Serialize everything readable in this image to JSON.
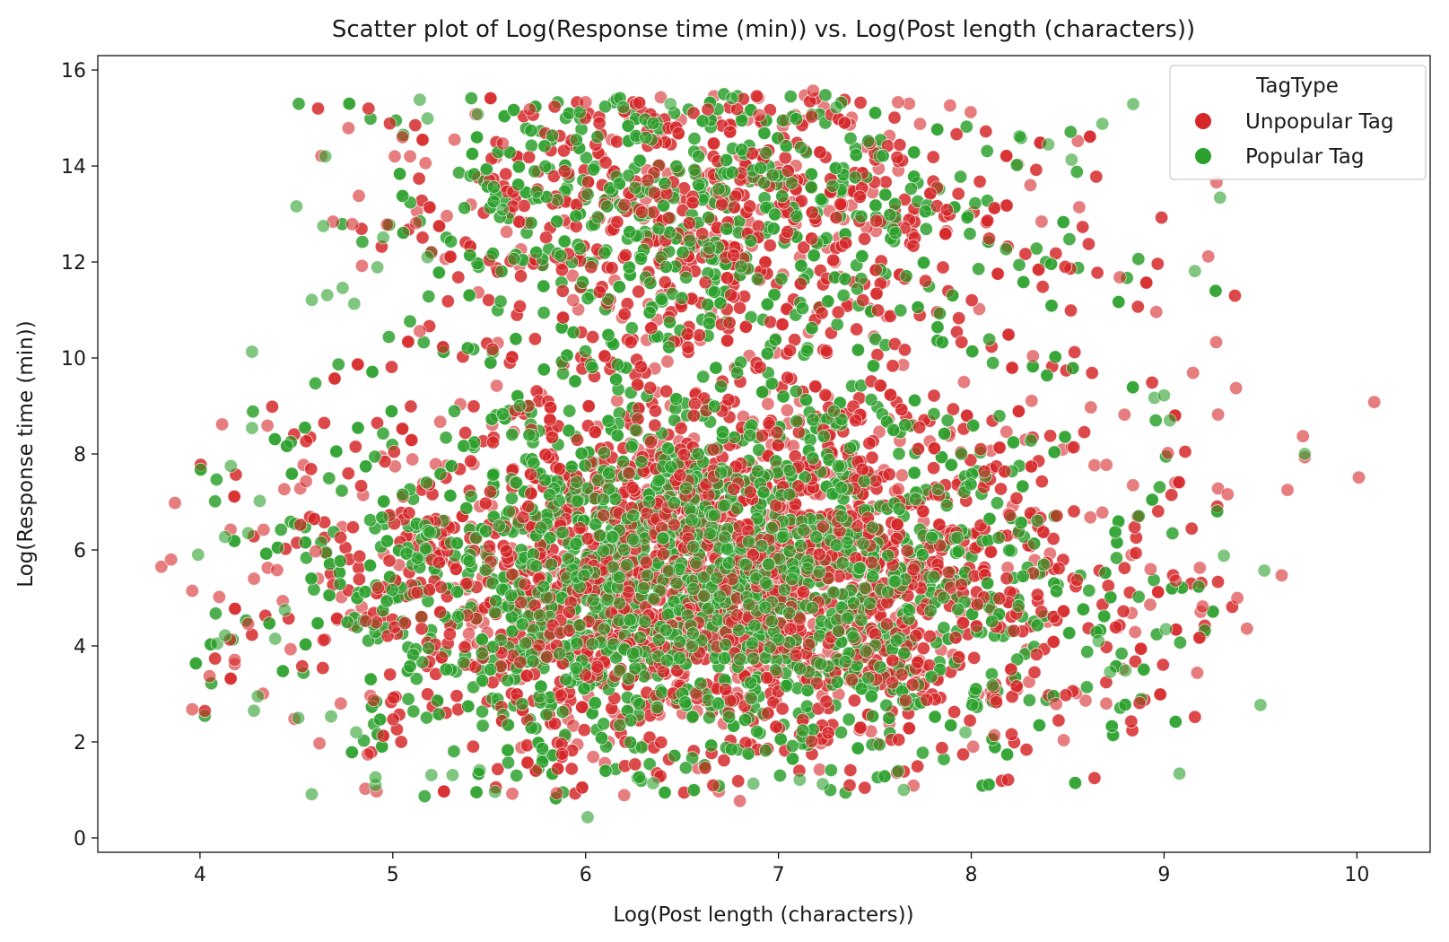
{
  "chart_data": {
    "type": "scatter",
    "title": "Scatter plot of Log(Response time (min)) vs. Log(Post length (characters))",
    "xlabel": "Log(Post length (characters))",
    "ylabel": "Log(Response time (min))",
    "xlim": [
      3.47,
      10.38
    ],
    "ylim": [
      -0.3,
      16.3
    ],
    "xticks": [
      4,
      5,
      6,
      7,
      8,
      9,
      10
    ],
    "yticks": [
      0,
      2,
      4,
      6,
      8,
      10,
      12,
      14,
      16
    ],
    "grid": false,
    "legend": {
      "title": "TagType",
      "placement": "top-right",
      "entries": [
        {
          "label": "Unpopular Tag",
          "color": "#d62728"
        },
        {
          "label": "Popular Tag",
          "color": "#2ca02c"
        }
      ]
    },
    "series": [
      {
        "name": "Unpopular Tag",
        "color": "#d62728",
        "cluster": {
          "x_mean": 6.7,
          "x_sd": 0.95,
          "y_low_mean": 5.5,
          "y_low_sd": 1.9,
          "y_high_mean": 12.8,
          "y_high_sd": 1.5,
          "high_fraction": 0.22,
          "count": 5200
        },
        "points": [
          [
            3.8,
            5.65
          ],
          [
            3.85,
            5.8
          ],
          [
            3.87,
            6.98
          ],
          [
            3.96,
            5.15
          ],
          [
            3.96,
            2.68
          ],
          [
            4.05,
            3.37
          ],
          [
            4.1,
            5.02
          ],
          [
            4.18,
            3.62
          ],
          [
            4.18,
            3.71
          ],
          [
            4.25,
            4.46
          ],
          [
            4.28,
            5.4
          ],
          [
            4.33,
            6.42
          ],
          [
            4.35,
            8.59
          ],
          [
            4.4,
            5.58
          ],
          [
            4.47,
            3.93
          ],
          [
            4.49,
            2.48
          ],
          [
            4.52,
            7.28
          ],
          [
            4.55,
            7.43
          ],
          [
            4.6,
            5.97
          ],
          [
            4.62,
            1.97
          ],
          [
            4.64,
            4.12
          ],
          [
            4.69,
            12.84
          ],
          [
            4.73,
            2.8
          ],
          [
            4.77,
            14.79
          ],
          [
            4.79,
            12.79
          ],
          [
            4.84,
            11.92
          ],
          [
            4.86,
            4.52
          ],
          [
            4.87,
            1.74
          ],
          [
            4.9,
            2.87
          ],
          [
            4.97,
            12.78
          ],
          [
            5.01,
            14.2
          ],
          [
            5.05,
            14.6
          ],
          [
            5.09,
            14.2
          ],
          [
            5.12,
            12.81
          ],
          [
            5.14,
            10.56
          ],
          [
            5.17,
            14.06
          ],
          [
            5.2,
            12.2
          ],
          [
            5.28,
            12.96
          ],
          [
            5.32,
            14.55
          ],
          [
            5.43,
            15.08
          ],
          [
            5.57,
            14.47
          ],
          [
            5.71,
            15.18
          ],
          [
            5.62,
            0.92
          ],
          [
            5.85,
            0.93
          ],
          [
            6.0,
            15.33
          ],
          [
            6.2,
            0.89
          ],
          [
            6.39,
            15.43
          ],
          [
            6.8,
            0.77
          ],
          [
            6.9,
            15.06
          ],
          [
            7.18,
            15.57
          ],
          [
            7.62,
            15.33
          ],
          [
            7.89,
            15.26
          ],
          [
            8.01,
            1.9
          ],
          [
            8.12,
            2.14
          ],
          [
            8.2,
            6.72
          ],
          [
            8.32,
            10.04
          ],
          [
            8.44,
            2.79
          ],
          [
            8.56,
            13.14
          ],
          [
            8.62,
            8.97
          ],
          [
            8.68,
            6.78
          ],
          [
            8.7,
            2.8
          ],
          [
            8.77,
            11.68
          ],
          [
            8.85,
            4.29
          ],
          [
            8.93,
            5.6
          ],
          [
            8.96,
            10.96
          ],
          [
            9.02,
            8.02
          ],
          [
            9.06,
            5.36
          ],
          [
            9.15,
            9.69
          ],
          [
            9.2,
            4.82
          ],
          [
            9.27,
            10.33
          ],
          [
            9.28,
            8.82
          ],
          [
            9.28,
            7.28
          ],
          [
            9.33,
            7.16
          ],
          [
            9.38,
            5.0
          ],
          [
            9.43,
            4.36
          ],
          [
            9.61,
            5.47
          ],
          [
            9.64,
            7.25
          ],
          [
            9.72,
            8.37
          ],
          [
            9.73,
            7.93
          ],
          [
            10.01,
            7.51
          ],
          [
            10.09,
            9.08
          ]
        ]
      },
      {
        "name": "Popular Tag",
        "color": "#2ca02c",
        "cluster": {
          "x_mean": 6.6,
          "x_sd": 0.95,
          "y_low_mean": 5.4,
          "y_low_sd": 1.9,
          "y_high_mean": 12.9,
          "y_high_sd": 1.5,
          "high_fraction": 0.22,
          "count": 5200
        },
        "points": [
          [
            3.99,
            5.9
          ],
          [
            4.09,
            4.05
          ],
          [
            4.13,
            4.22
          ],
          [
            4.13,
            6.27
          ],
          [
            4.16,
            7.75
          ],
          [
            4.25,
            6.35
          ],
          [
            4.27,
            8.54
          ],
          [
            4.27,
            10.13
          ],
          [
            4.28,
            2.65
          ],
          [
            4.3,
            2.95
          ],
          [
            4.31,
            7.02
          ],
          [
            4.39,
            4.15
          ],
          [
            4.44,
            4.75
          ],
          [
            4.5,
            13.16
          ],
          [
            4.51,
            2.5
          ],
          [
            4.58,
            0.91
          ],
          [
            4.58,
            11.21
          ],
          [
            4.64,
            12.75
          ],
          [
            4.65,
            14.2
          ],
          [
            4.66,
            11.31
          ],
          [
            4.68,
            2.53
          ],
          [
            4.74,
            11.46
          ],
          [
            4.8,
            11.13
          ],
          [
            4.81,
            2.2
          ],
          [
            4.91,
            1.1
          ],
          [
            4.91,
            1.26
          ],
          [
            4.92,
            11.89
          ],
          [
            4.95,
            12.51
          ],
          [
            5.14,
            15.38
          ],
          [
            5.18,
            14.99
          ],
          [
            5.18,
            12.1
          ],
          [
            5.2,
            1.31
          ],
          [
            5.31,
            1.31
          ],
          [
            5.44,
            15.08
          ],
          [
            5.45,
            1.41
          ],
          [
            5.53,
            0.96
          ],
          [
            5.57,
            13.09
          ],
          [
            6.01,
            0.43
          ],
          [
            6.35,
            1.14
          ],
          [
            6.44,
            15.29
          ],
          [
            6.76,
            15.41
          ],
          [
            6.87,
            1.13
          ],
          [
            7.11,
            1.21
          ],
          [
            7.23,
            1.12
          ],
          [
            7.3,
            15.22
          ],
          [
            7.65,
            1.0
          ],
          [
            7.97,
            2.2
          ],
          [
            8.25,
            14.62
          ],
          [
            8.4,
            14.45
          ],
          [
            8.52,
            14.13
          ],
          [
            8.68,
            14.88
          ],
          [
            8.66,
            4.1
          ],
          [
            8.72,
            3.46
          ],
          [
            8.8,
            3.49
          ],
          [
            8.84,
            15.29
          ],
          [
            8.95,
            9.17
          ],
          [
            9.0,
            9.22
          ],
          [
            9.01,
            4.35
          ],
          [
            9.03,
            8.7
          ],
          [
            9.08,
            1.34
          ],
          [
            9.16,
            11.81
          ],
          [
            9.29,
            13.34
          ],
          [
            9.31,
            5.88
          ],
          [
            9.5,
            2.77
          ],
          [
            9.52,
            5.57
          ],
          [
            9.73,
            8.0
          ]
        ]
      }
    ]
  }
}
